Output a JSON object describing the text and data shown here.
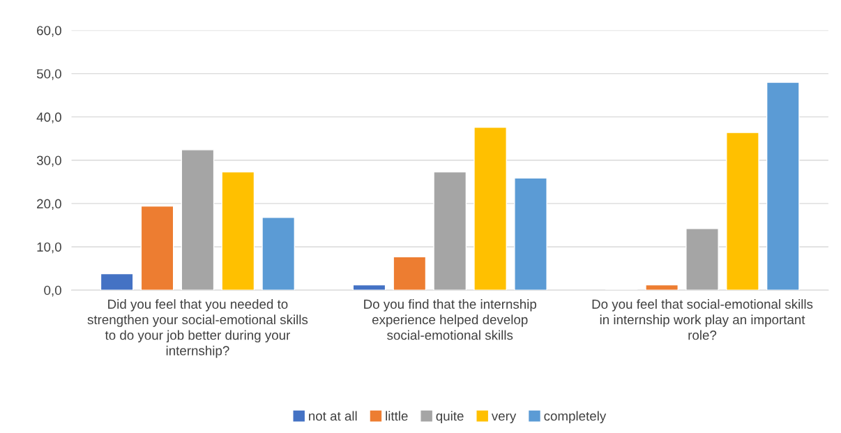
{
  "chart_data": {
    "type": "bar",
    "categories": [
      "Did you feel that you needed to strengthen your social-emotional skills to do your job better during your internship?",
      "Do you find that the internship experience helped develop social-emotional skills",
      "Do you feel that social-emotional skills in internship work play an important role?"
    ],
    "series": [
      {
        "name": "not at all",
        "color": "#4472c4",
        "values": [
          3.8,
          1.2,
          null
        ]
      },
      {
        "name": "little",
        "color": "#ed7d31",
        "values": [
          19.4,
          7.7,
          1.2
        ]
      },
      {
        "name": "quite",
        "color": "#a5a5a5",
        "values": [
          32.4,
          27.3,
          14.2
        ]
      },
      {
        "name": "very",
        "color": "#ffc000",
        "values": [
          27.3,
          37.6,
          36.4
        ]
      },
      {
        "name": "completely",
        "color": "#5b9bd5",
        "values": [
          16.8,
          25.9,
          48.0
        ]
      }
    ],
    "ylim": [
      0,
      60
    ],
    "yticks": [
      {
        "value": 0,
        "label": "0,0"
      },
      {
        "value": 10,
        "label": "10,0"
      },
      {
        "value": 20,
        "label": "20,0"
      },
      {
        "value": 30,
        "label": "30,0"
      },
      {
        "value": 40,
        "label": "40,0"
      },
      {
        "value": 50,
        "label": "50,0"
      },
      {
        "value": 60,
        "label": "60,0"
      }
    ],
    "grid": "y",
    "legend": "bottom"
  }
}
